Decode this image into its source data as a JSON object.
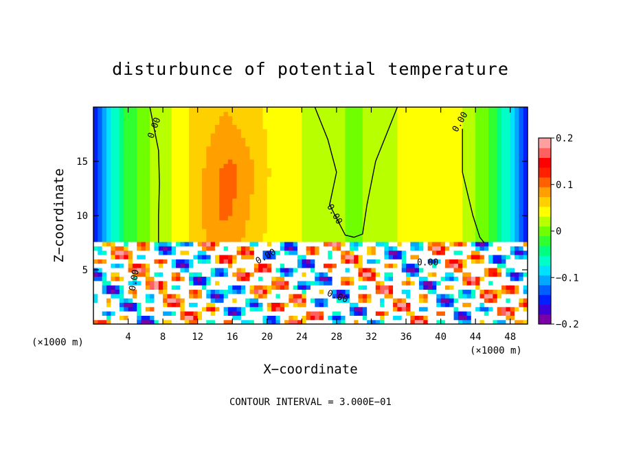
{
  "chart_data": {
    "type": "heatmap",
    "title": "disturbunce of potential temperature",
    "xlabel": "X−coordinate",
    "ylabel": "Z−coordinate",
    "x_unit": "(×1000 m)",
    "x_ticks": [
      4,
      8,
      12,
      16,
      20,
      24,
      28,
      32,
      36,
      40,
      44,
      48
    ],
    "y_ticks": [
      5,
      10,
      15
    ],
    "xlim": [
      0,
      50
    ],
    "ylim": [
      0,
      20
    ],
    "colorbar": {
      "ticks": [
        0.2,
        0.1,
        0,
        -0.1,
        -0.2
      ],
      "tick_labels": [
        "0.2",
        "0.1",
        "0",
        "−0.1",
        "−0.2"
      ],
      "range": [
        -0.2,
        0.2
      ],
      "colors": [
        "#7a00a8",
        "#3c00d8",
        "#0020ff",
        "#0060ff",
        "#00a8ff",
        "#00e0ff",
        "#00ffc8",
        "#00ff80",
        "#30ff30",
        "#70ff00",
        "#b8ff00",
        "#ffff00",
        "#ffd000",
        "#ffa000",
        "#ff6000",
        "#ff2000",
        "#ff0000",
        "#ff6060",
        "#ffa0a0"
      ]
    },
    "contour_label": "0.00",
    "contour_interval_note": "CONTOUR INTERVAL = 3.000E−01"
  }
}
